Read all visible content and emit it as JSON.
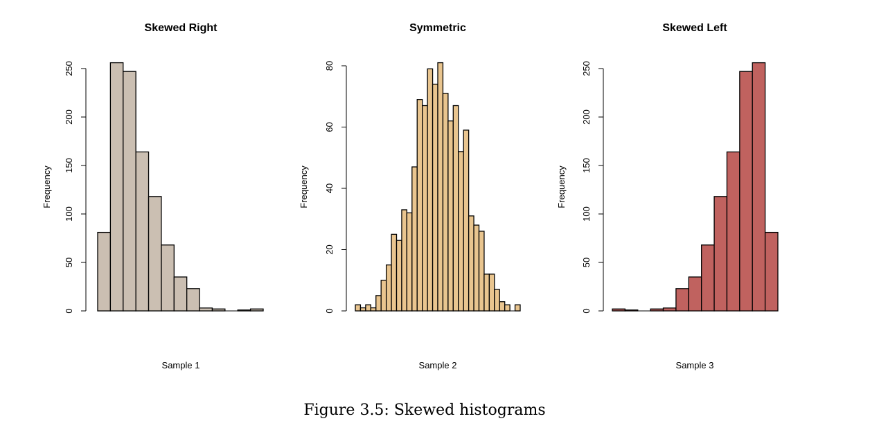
{
  "caption": "Figure 3.5: Skewed histograms",
  "chart_data": [
    {
      "type": "bar",
      "title": "Skewed Right",
      "xlabel": "Sample 1",
      "ylabel": "Frequency",
      "ylim": [
        0,
        250
      ],
      "yticks": [
        0,
        50,
        100,
        150,
        200,
        250
      ],
      "color": "#cbbfb2",
      "values": [
        81,
        256,
        247,
        164,
        118,
        68,
        35,
        23,
        3,
        2,
        0,
        1,
        2
      ]
    },
    {
      "type": "bar",
      "title": "Symmetric",
      "xlabel": "Sample 2",
      "ylabel": "Frequency",
      "ylim": [
        0,
        80
      ],
      "yticks": [
        0,
        20,
        40,
        60,
        80
      ],
      "color": "#e9c58f",
      "values": [
        2,
        1,
        2,
        1,
        5,
        10,
        15,
        25,
        23,
        33,
        32,
        47,
        69,
        67,
        79,
        74,
        81,
        71,
        62,
        67,
        52,
        59,
        31,
        28,
        26,
        12,
        12,
        7,
        3,
        2,
        0,
        2
      ]
    },
    {
      "type": "bar",
      "title": "Skewed Left",
      "xlabel": "Sample 3",
      "ylabel": "Frequency",
      "ylim": [
        0,
        250
      ],
      "yticks": [
        0,
        50,
        100,
        150,
        200,
        250
      ],
      "color": "#c0625f",
      "values": [
        2,
        1,
        0,
        2,
        3,
        23,
        35,
        68,
        118,
        164,
        247,
        256,
        81
      ]
    }
  ]
}
